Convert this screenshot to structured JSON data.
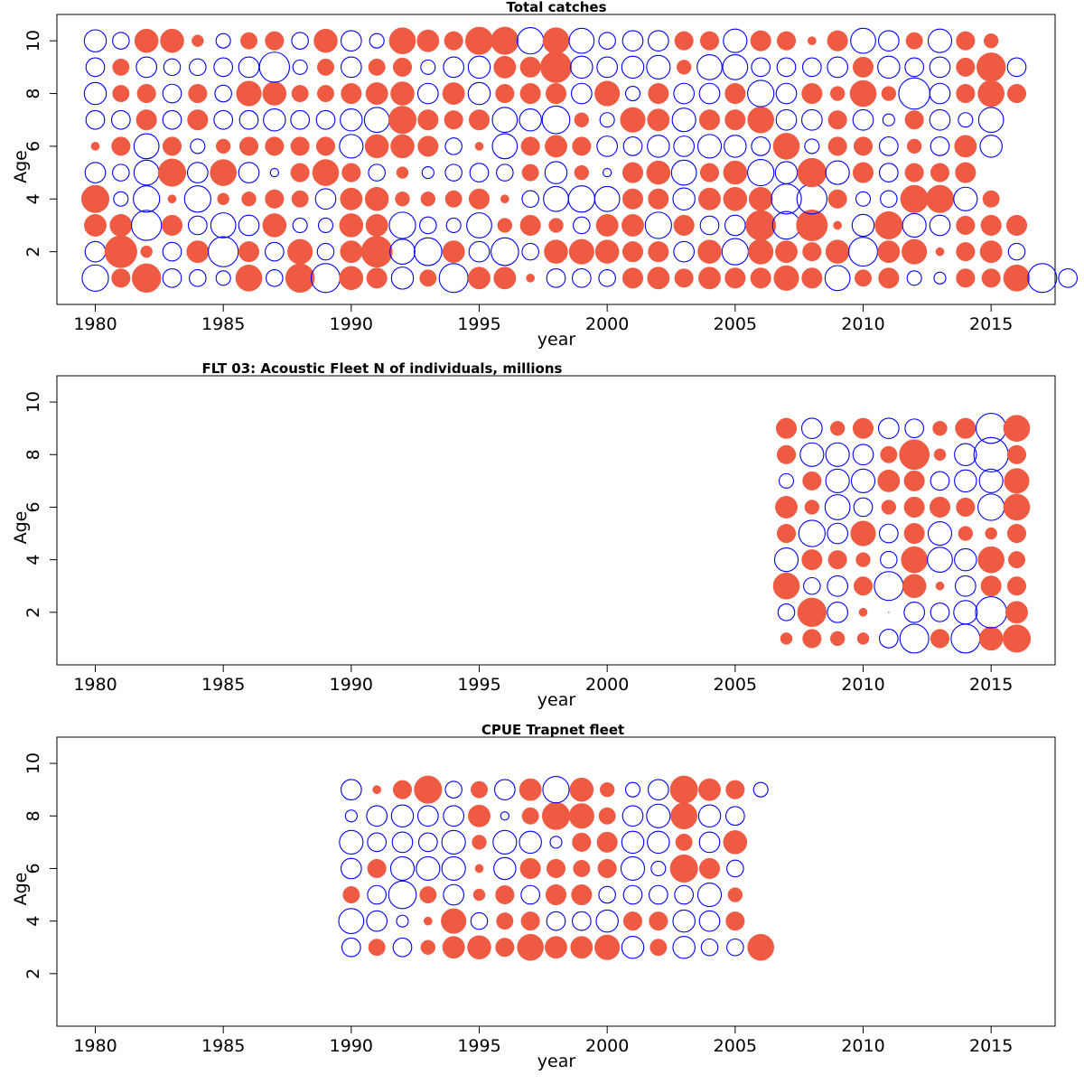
{
  "colors": {
    "positive": "#ef5a42",
    "negative": "#0000ff",
    "frame": "#000000"
  },
  "chart_data": [
    {
      "type": "scatter",
      "subtype": "residual-bubble",
      "title": "Total catches",
      "xlabel": "year",
      "ylabel": "Age",
      "xlim": [
        1978.5,
        2017.5
      ],
      "ylim": [
        0,
        11
      ],
      "xticks": [
        1980,
        1985,
        1990,
        1995,
        2000,
        2005,
        2010,
        2015
      ],
      "yticks": [
        2,
        4,
        6,
        8,
        10
      ],
      "x_start": 1980,
      "y_ages": [
        1,
        2,
        3,
        4,
        5,
        6,
        7,
        8,
        9,
        10
      ],
      "residuals": [
        [
          -1.0,
          0.5,
          1.2,
          -0.5,
          -0.4,
          -0.3,
          1.0,
          -0.4,
          1.2,
          -1.2,
          0.8,
          0.6,
          -0.7,
          0.4,
          -1.2,
          0.7,
          0.7,
          0.1,
          -0.5,
          -0.5,
          -0.4,
          0.6,
          0.7,
          0.5,
          0.7,
          0.6,
          0.6,
          0.9,
          0.6,
          -0.9,
          0.4,
          0.6,
          -0.3,
          -0.2,
          0.5,
          0.5,
          1.0,
          -1.2,
          -0.5
        ],
        [
          -0.6,
          1.5,
          0.2,
          -0.5,
          0.7,
          -1.3,
          0.6,
          -0.5,
          0.9,
          -0.4,
          0.7,
          1.4,
          -0.9,
          -1.1,
          0.7,
          -0.6,
          -1.1,
          -0.4,
          0.8,
          0.9,
          0.8,
          0.6,
          0.6,
          -0.6,
          0.8,
          -1.0,
          0.9,
          0.7,
          0.5,
          0.8,
          -1.2,
          0.7,
          0.9,
          0.1,
          0.5,
          0.7,
          -0.4
        ],
        [
          0.7,
          0.7,
          -1.3,
          0.6,
          -0.5,
          -0.9,
          -0.6,
          0.8,
          -0.3,
          -0.3,
          0.8,
          0.7,
          -1.0,
          -0.4,
          -0.3,
          -0.9,
          0.3,
          0.6,
          0.3,
          -0.4,
          0.7,
          0.7,
          -1.0,
          0.6,
          -0.5,
          -0.6,
          1.3,
          -1.1,
          1.4,
          0.1,
          -0.7,
          1.1,
          -0.8,
          -0.6,
          0.5,
          0.6,
          0.6
        ],
        [
          1.1,
          -0.3,
          -1.0,
          0.1,
          -1.0,
          0.2,
          0.3,
          0.5,
          0.4,
          -0.6,
          0.7,
          0.8,
          0.3,
          0.3,
          0.4,
          0.6,
          0.1,
          -0.4,
          -0.9,
          -1.0,
          -0.9,
          0.6,
          0.6,
          -0.7,
          0.7,
          0.8,
          0.8,
          -1.3,
          -1.3,
          0.5,
          -0.3,
          -0.4,
          1.1,
          1.1,
          -0.8,
          0.4
        ],
        [
          -0.6,
          -0.4,
          -0.9,
          1.1,
          -0.6,
          1.0,
          -0.6,
          -0.1,
          0.5,
          1.0,
          0.5,
          -0.4,
          0.2,
          -0.2,
          -0.4,
          -0.5,
          -0.4,
          0.4,
          -0.7,
          0.3,
          -0.1,
          0.6,
          0.8,
          -0.9,
          0.5,
          0.8,
          -1.0,
          -0.7,
          1.2,
          -0.8,
          0.6,
          -0.5,
          0.5,
          0.5,
          0.6
        ],
        [
          0.1,
          0.5,
          -0.9,
          0.5,
          -0.3,
          0.3,
          0.5,
          0.5,
          0.5,
          0.5,
          -0.8,
          0.8,
          0.8,
          0.6,
          -0.4,
          0.1,
          -0.9,
          0.5,
          0.7,
          0.5,
          -0.6,
          -0.5,
          -0.7,
          -0.6,
          -0.8,
          -0.7,
          -0.5,
          1.0,
          -0.3,
          0.5,
          0.5,
          -0.5,
          0.3,
          -0.5,
          0.7,
          -0.7
        ],
        [
          -0.5,
          -0.5,
          0.6,
          -0.5,
          0.6,
          -0.5,
          -0.5,
          -0.7,
          -0.5,
          -0.5,
          -0.7,
          -0.9,
          1.1,
          0.6,
          0.5,
          0.6,
          -0.9,
          -0.7,
          -1.1,
          0.3,
          -0.3,
          0.9,
          0.7,
          -0.8,
          0.6,
          0.6,
          1.0,
          -0.6,
          -0.6,
          0.5,
          -0.6,
          -0.2,
          0.5,
          -0.6,
          -0.3,
          -0.9
        ],
        [
          -0.7,
          0.4,
          0.5,
          -0.5,
          0.5,
          -0.4,
          0.9,
          0.8,
          0.4,
          0.4,
          0.6,
          0.7,
          0.8,
          -0.6,
          0.7,
          -0.7,
          0.5,
          0.6,
          0.6,
          -0.6,
          0.9,
          -0.3,
          0.6,
          -0.6,
          -0.6,
          0.6,
          -1.0,
          -0.6,
          0.6,
          0.3,
          1.0,
          0.3,
          -1.4,
          -0.6,
          0.5,
          1.0,
          0.5
        ],
        [
          -0.5,
          0.4,
          -0.6,
          -0.4,
          -0.4,
          -0.5,
          -0.6,
          -1.3,
          -0.3,
          0.4,
          -0.6,
          0.4,
          0.5,
          -0.3,
          -0.6,
          -0.7,
          0.7,
          0.6,
          1.4,
          -0.7,
          -0.6,
          -0.7,
          -0.8,
          0.3,
          -0.9,
          -0.9,
          -0.5,
          -0.5,
          -0.5,
          -0.6,
          0.6,
          -0.7,
          -0.5,
          -0.6,
          0.5,
          1.2,
          -0.5
        ],
        [
          -0.7,
          -0.4,
          0.8,
          0.8,
          0.2,
          -0.3,
          0.4,
          0.5,
          -0.4,
          0.8,
          -0.6,
          -0.3,
          1.0,
          0.7,
          0.5,
          1.1,
          1.1,
          -1.0,
          1.0,
          -0.9,
          -0.4,
          -0.6,
          -0.6,
          0.5,
          0.5,
          -0.8,
          0.6,
          0.5,
          0.1,
          0.6,
          -0.9,
          -0.6,
          0.4,
          -0.8,
          0.5,
          0.3
        ]
      ]
    },
    {
      "type": "scatter",
      "subtype": "residual-bubble",
      "title": "FLT 03: Acoustic Fleet   N of individuals, millions",
      "xlabel": "year",
      "ylabel": "Age",
      "xlim": [
        1978.5,
        2017.5
      ],
      "ylim": [
        0,
        11
      ],
      "xticks": [
        1980,
        1985,
        1990,
        1995,
        2000,
        2005,
        2010,
        2015
      ],
      "yticks": [
        2,
        4,
        6,
        8,
        10
      ],
      "x_start": 2007,
      "y_ages": [
        1,
        2,
        3,
        4,
        5,
        6,
        7,
        8,
        9
      ],
      "residuals": [
        [
          0.2,
          0.5,
          0.3,
          0.2,
          -0.5,
          -1.2,
          0.5,
          -1.2,
          0.8,
          1.1
        ],
        [
          -0.4,
          1.2,
          -0.6,
          0.1,
          0.0,
          -0.6,
          -0.5,
          -0.8,
          -1.4,
          0.7
        ],
        [
          1.0,
          -0.4,
          -0.6,
          0.5,
          -1.2,
          0.8,
          0.1,
          -0.6,
          0.6,
          0.5
        ],
        [
          -0.8,
          0.6,
          0.5,
          0.3,
          -0.4,
          1.0,
          -0.9,
          -0.7,
          1.0,
          0.4
        ],
        [
          0.5,
          -1.0,
          -0.6,
          0.9,
          -0.5,
          0.6,
          -0.8,
          0.3,
          0.2,
          0.5
        ],
        [
          0.7,
          0.3,
          -0.9,
          -0.5,
          0.3,
          0.6,
          0.6,
          0.5,
          -1.0,
          1.0
        ],
        [
          -0.3,
          0.5,
          -0.8,
          -0.8,
          0.7,
          0.6,
          -0.5,
          -0.7,
          -0.8,
          0.9
        ],
        [
          0.5,
          -0.8,
          -0.8,
          -0.6,
          0.4,
          1.3,
          0.2,
          -0.7,
          -1.7,
          0.5
        ],
        [
          0.6,
          -0.6,
          0.3,
          0.6,
          -0.6,
          -0.5,
          0.3,
          0.6,
          -1.3,
          1.0
        ]
      ]
    },
    {
      "type": "scatter",
      "subtype": "residual-bubble",
      "title": "CPUE Trapnet fleet",
      "xlabel": "year",
      "ylabel": "Age",
      "xlim": [
        1978.5,
        2017.5
      ],
      "ylim": [
        0,
        11
      ],
      "xticks": [
        1980,
        1985,
        1990,
        1995,
        2000,
        2005,
        2010,
        2015
      ],
      "yticks": [
        2,
        4,
        6,
        8,
        10
      ],
      "x_start": 1990,
      "y_ages": [
        3,
        4,
        5,
        6,
        7,
        8,
        9
      ],
      "residuals": [
        [
          -0.5,
          0.4,
          -0.5,
          0.3,
          0.7,
          0.8,
          0.5,
          1.0,
          0.7,
          0.7,
          0.9,
          -0.7,
          0.4,
          -0.7,
          -0.4,
          -0.4,
          1.0
        ],
        [
          -0.9,
          -0.6,
          -0.2,
          0.1,
          0.9,
          -0.4,
          0.4,
          0.5,
          -0.5,
          -0.5,
          -0.7,
          0.5,
          0.5,
          -0.7,
          -0.6,
          0.5
        ],
        [
          0.4,
          -0.5,
          -1.1,
          0.4,
          -0.6,
          0.2,
          0.5,
          -0.5,
          0.6,
          0.6,
          -0.4,
          -0.5,
          -0.5,
          -0.5,
          -0.8,
          0.3
        ],
        [
          -0.6,
          0.5,
          -0.8,
          -0.8,
          -0.8,
          0.1,
          -0.7,
          0.6,
          0.5,
          0.4,
          0.5,
          -0.8,
          -0.3,
          1.1,
          0.6,
          -0.4
        ],
        [
          -0.8,
          -0.5,
          -0.6,
          -0.5,
          -0.8,
          0.3,
          -0.8,
          -0.7,
          -0.2,
          0.5,
          0.6,
          -0.7,
          -0.7,
          0.4,
          -0.6,
          0.8
        ],
        [
          -0.2,
          -0.6,
          -0.7,
          -0.6,
          -0.6,
          0.7,
          -0.1,
          0.4,
          1.1,
          0.9,
          0.4,
          -0.6,
          -0.8,
          1.0,
          -0.7,
          -0.5
        ],
        [
          -0.6,
          0.1,
          0.5,
          1.1,
          -0.4,
          0.4,
          -0.6,
          0.7,
          -1.0,
          0.8,
          0.3,
          -0.3,
          -0.6,
          1.1,
          0.7,
          0.5,
          -0.3
        ]
      ]
    }
  ]
}
